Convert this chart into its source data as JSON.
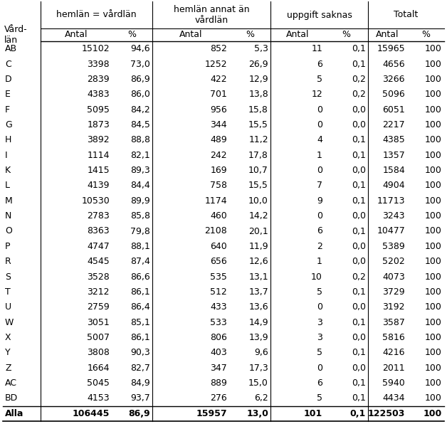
{
  "rows": [
    [
      "AB",
      "15102",
      "94,6",
      "852",
      "5,3",
      "11",
      "0,1",
      "15965",
      "100"
    ],
    [
      "C",
      "3398",
      "73,0",
      "1252",
      "26,9",
      "6",
      "0,1",
      "4656",
      "100"
    ],
    [
      "D",
      "2839",
      "86,9",
      "422",
      "12,9",
      "5",
      "0,2",
      "3266",
      "100"
    ],
    [
      "E",
      "4383",
      "86,0",
      "701",
      "13,8",
      "12",
      "0,2",
      "5096",
      "100"
    ],
    [
      "F",
      "5095",
      "84,2",
      "956",
      "15,8",
      "0",
      "0,0",
      "6051",
      "100"
    ],
    [
      "G",
      "1873",
      "84,5",
      "344",
      "15,5",
      "0",
      "0,0",
      "2217",
      "100"
    ],
    [
      "H",
      "3892",
      "88,8",
      "489",
      "11,2",
      "4",
      "0,1",
      "4385",
      "100"
    ],
    [
      "I",
      "1114",
      "82,1",
      "242",
      "17,8",
      "1",
      "0,1",
      "1357",
      "100"
    ],
    [
      "K",
      "1415",
      "89,3",
      "169",
      "10,7",
      "0",
      "0,0",
      "1584",
      "100"
    ],
    [
      "L",
      "4139",
      "84,4",
      "758",
      "15,5",
      "7",
      "0,1",
      "4904",
      "100"
    ],
    [
      "M",
      "10530",
      "89,9",
      "1174",
      "10,0",
      "9",
      "0,1",
      "11713",
      "100"
    ],
    [
      "N",
      "2783",
      "85,8",
      "460",
      "14,2",
      "0",
      "0,0",
      "3243",
      "100"
    ],
    [
      "O",
      "8363",
      "79,8",
      "2108",
      "20,1",
      "6",
      "0,1",
      "10477",
      "100"
    ],
    [
      "P",
      "4747",
      "88,1",
      "640",
      "11,9",
      "2",
      "0,0",
      "5389",
      "100"
    ],
    [
      "R",
      "4545",
      "87,4",
      "656",
      "12,6",
      "1",
      "0,0",
      "5202",
      "100"
    ],
    [
      "S",
      "3528",
      "86,6",
      "535",
      "13,1",
      "10",
      "0,2",
      "4073",
      "100"
    ],
    [
      "T",
      "3212",
      "86,1",
      "512",
      "13,7",
      "5",
      "0,1",
      "3729",
      "100"
    ],
    [
      "U",
      "2759",
      "86,4",
      "433",
      "13,6",
      "0",
      "0,0",
      "3192",
      "100"
    ],
    [
      "W",
      "3051",
      "85,1",
      "533",
      "14,9",
      "3",
      "0,1",
      "3587",
      "100"
    ],
    [
      "X",
      "5007",
      "86,1",
      "806",
      "13,9",
      "3",
      "0,0",
      "5816",
      "100"
    ],
    [
      "Y",
      "3808",
      "90,3",
      "403",
      "9,6",
      "5",
      "0,1",
      "4216",
      "100"
    ],
    [
      "Z",
      "1664",
      "82,7",
      "347",
      "17,3",
      "0",
      "0,0",
      "2011",
      "100"
    ],
    [
      "AC",
      "5045",
      "84,9",
      "889",
      "15,0",
      "6",
      "0,1",
      "5940",
      "100"
    ],
    [
      "BD",
      "4153",
      "93,7",
      "276",
      "6,2",
      "5",
      "0,1",
      "4434",
      "100"
    ]
  ],
  "total_row": [
    "Alla",
    "106445",
    "86,9",
    "15957",
    "13,0",
    "101",
    "0,1",
    "122503",
    "100"
  ],
  "group_labels": [
    "hemlän = vårdlän",
    "hemlän annat än\nvårdlän",
    "uppgift saknas",
    "Totalt"
  ],
  "subheaders": [
    "Antal",
    "%",
    "Antal",
    "%",
    "Antal",
    "%",
    "Antal",
    "%"
  ],
  "row_header_label": "Vård-\nlän",
  "bg_color": "#ffffff",
  "text_color": "#000000",
  "line_color": "#000000",
  "font_size": 9.0,
  "header_font_size": 9.0
}
